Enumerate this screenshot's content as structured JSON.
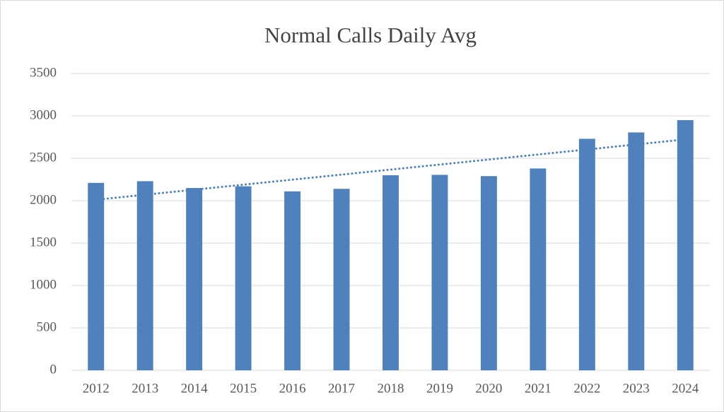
{
  "chart_data": {
    "type": "bar",
    "title": "Normal Calls Daily Avg",
    "categories": [
      "2012",
      "2013",
      "2014",
      "2015",
      "2016",
      "2017",
      "2018",
      "2019",
      "2020",
      "2021",
      "2022",
      "2023",
      "2024"
    ],
    "values": [
      2210,
      2230,
      2150,
      2170,
      2110,
      2140,
      2300,
      2305,
      2290,
      2380,
      2730,
      2805,
      2950
    ],
    "color": "#4f81bd",
    "ylim": [
      0,
      3500
    ],
    "yticks": [
      0,
      500,
      1000,
      1500,
      2000,
      2500,
      3000,
      3500
    ],
    "grid": true,
    "trendline": "linear"
  }
}
